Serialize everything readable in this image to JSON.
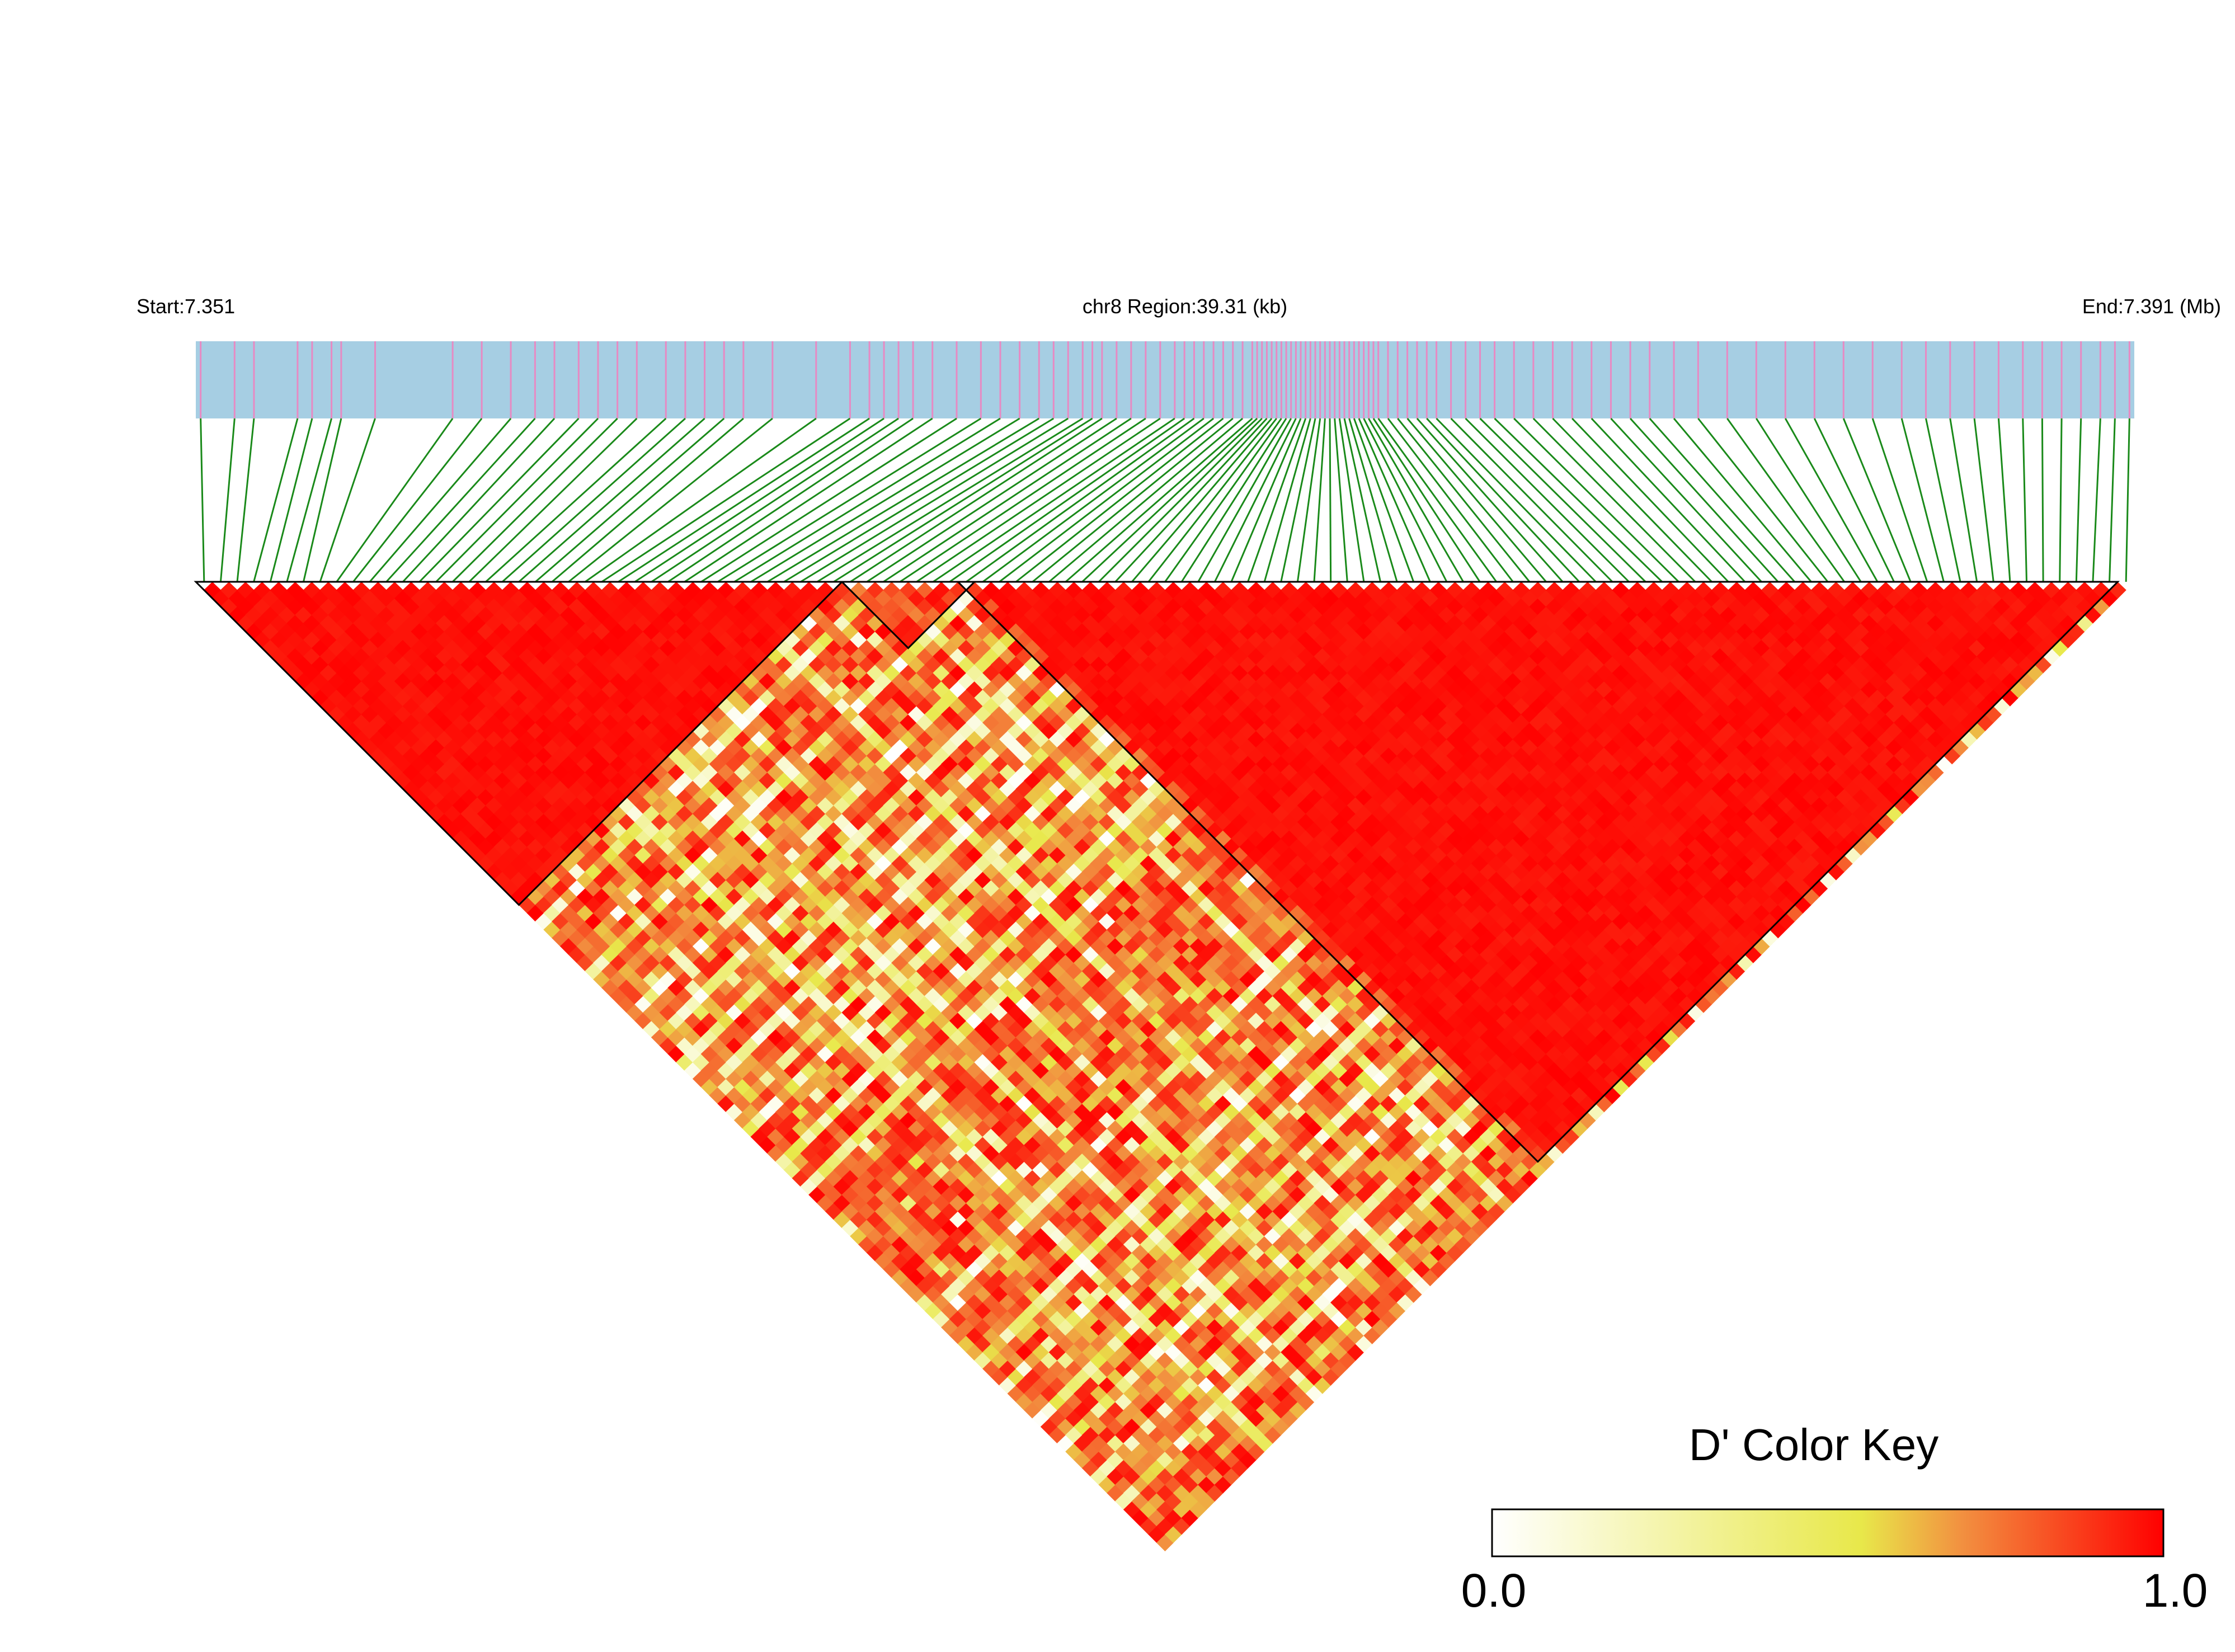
{
  "header": {
    "start_label": "Start:7.351",
    "region_label": "chr8 Region:39.31 (kb)",
    "end_label": "End:7.391 (Mb)"
  },
  "colors": {
    "track_bg": "#a6cee3",
    "snp_mark": "#e78ac3",
    "connector": "#1a8a1a",
    "low": "#ffffff",
    "mid": "#e8e84a",
    "high": "#ff0000",
    "block_outline": "#000000"
  },
  "color_key": {
    "title": "D' Color Key",
    "min_label": "0.0",
    "max_label": "1.0"
  },
  "chart_data": {
    "type": "heatmap",
    "title": "",
    "chromosome": "chr8",
    "start_mb": 7.351,
    "end_mb": 7.391,
    "region_kb": 39.31,
    "metric": "D'",
    "value_range": [
      0,
      1
    ],
    "snp_positions_mb": [
      7.3511,
      7.3518,
      7.3522,
      7.3531,
      7.3534,
      7.3538,
      7.354,
      7.3547,
      7.3563,
      7.3569,
      7.3575,
      7.358,
      7.3584,
      7.3589,
      7.3593,
      7.3597,
      7.3601,
      7.3607,
      7.3611,
      7.3615,
      7.3619,
      7.3623,
      7.3629,
      7.3638,
      7.3645,
      7.3649,
      7.3652,
      7.3655,
      7.3658,
      7.3662,
      7.3667,
      7.3672,
      7.3676,
      7.368,
      7.3684,
      7.3687,
      7.369,
      7.3693,
      7.3695,
      7.3697,
      7.37,
      7.3703,
      7.3706,
      7.3709,
      7.3712,
      7.3714,
      7.3716,
      7.3718,
      7.372,
      7.3722,
      7.3724,
      7.3726,
      7.3728,
      7.3729,
      7.373,
      7.3731,
      7.3732,
      7.3733,
      7.3734,
      7.3735,
      7.3736,
      7.3737,
      7.3738,
      7.3739,
      7.374,
      7.3741,
      7.3742,
      7.3743,
      7.3744,
      7.3745,
      7.3746,
      7.3747,
      7.3748,
      7.3749,
      7.375,
      7.3751,
      7.3752,
      7.3753,
      7.3754,
      7.3756,
      7.3758,
      7.376,
      7.3762,
      7.3764,
      7.3766,
      7.3769,
      7.3772,
      7.3775,
      7.3778,
      7.3782,
      7.3786,
      7.379,
      7.3794,
      7.3798,
      7.3802,
      7.3806,
      7.381,
      7.3815,
      7.382,
      7.3826,
      7.3832,
      7.3838,
      7.3844,
      7.385,
      7.3856,
      7.3862,
      7.3867,
      7.3872,
      7.3877,
      7.3882,
      7.3887,
      7.3891,
      7.3895,
      7.3899,
      7.3903,
      7.3906,
      7.3909
    ],
    "ld_blocks_snp_index": [
      [
        0,
        38
      ],
      [
        39,
        46
      ],
      [
        46,
        115
      ]
    ],
    "color_key_stops": [
      {
        "value": 0.0,
        "color": "#ffffff"
      },
      {
        "value": 0.55,
        "color": "#e8e84a"
      },
      {
        "value": 0.7,
        "color": "#f29040"
      },
      {
        "value": 1.0,
        "color": "#ff0000"
      }
    ]
  }
}
